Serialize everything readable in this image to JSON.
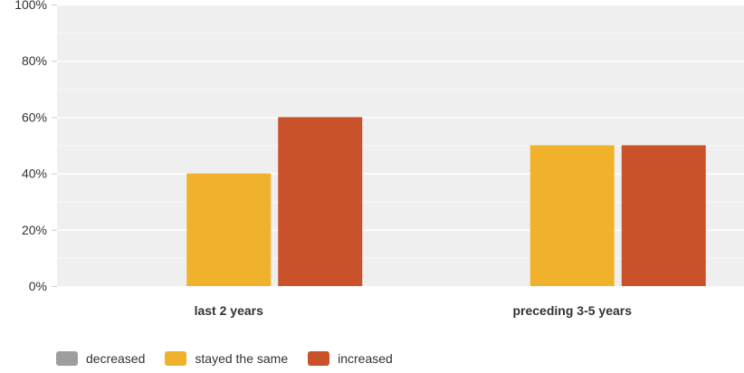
{
  "chart_data": {
    "type": "bar",
    "categories": [
      "last 2 years",
      "preceding 3-5 years"
    ],
    "series": [
      {
        "name": "decreased",
        "color": "#9e9e9e",
        "values": [
          0,
          0
        ]
      },
      {
        "name": "stayed the same",
        "color": "#f0b22c",
        "values": [
          40,
          50
        ]
      },
      {
        "name": "increased",
        "color": "#c9522a",
        "values": [
          60,
          50
        ]
      }
    ],
    "ylim": [
      0,
      100
    ],
    "yticks": [
      0,
      20,
      40,
      60,
      80,
      100
    ],
    "ytick_labels": [
      "0%",
      "20%",
      "40%",
      "60%",
      "80%",
      "100%"
    ],
    "grid": true,
    "legend_position": "bottom-left",
    "plot_background": "#efefef"
  }
}
